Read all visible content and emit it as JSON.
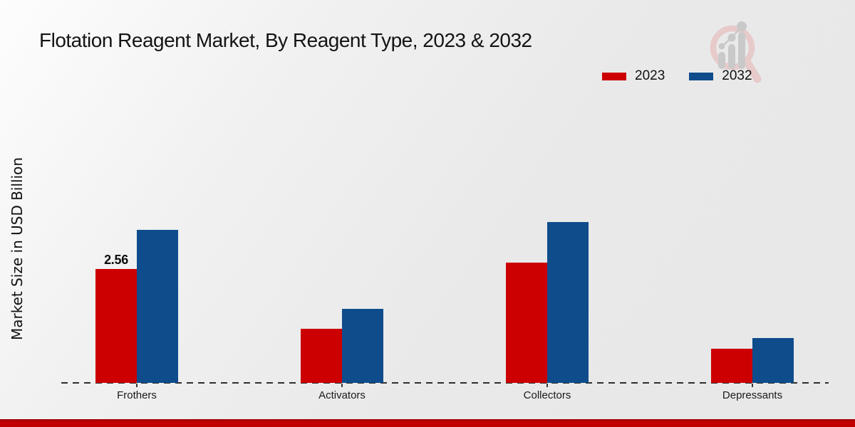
{
  "chart_data": {
    "type": "bar",
    "title": "Flotation Reagent Market, By Reagent Type, 2023 & 2032",
    "ylabel": "Market Size in USD Billion",
    "xlabel": "",
    "categories": [
      "Frothers",
      "Activators",
      "Collectors",
      "Depressants"
    ],
    "series": [
      {
        "name": "2023",
        "color": "#cc0000",
        "values": [
          2.56,
          1.22,
          2.7,
          0.77
        ]
      },
      {
        "name": "2032",
        "color": "#0e4c8c",
        "values": [
          3.43,
          1.66,
          3.62,
          1.02
        ]
      }
    ],
    "value_labels": [
      {
        "series": "2023",
        "category": "Frothers",
        "text": "2.56"
      }
    ],
    "ylim": [
      0,
      4
    ],
    "grid": false,
    "y_axis_ticks_visible": false,
    "baseline_style": "dashed",
    "legend_position": "top-right"
  },
  "branding": {
    "logo_icon": "magnifier-growth-chart-watermark",
    "logo_ring_color": "#e7caca",
    "logo_bars_color": "#c9c9c9",
    "footer_bar_color": "#c60000"
  }
}
